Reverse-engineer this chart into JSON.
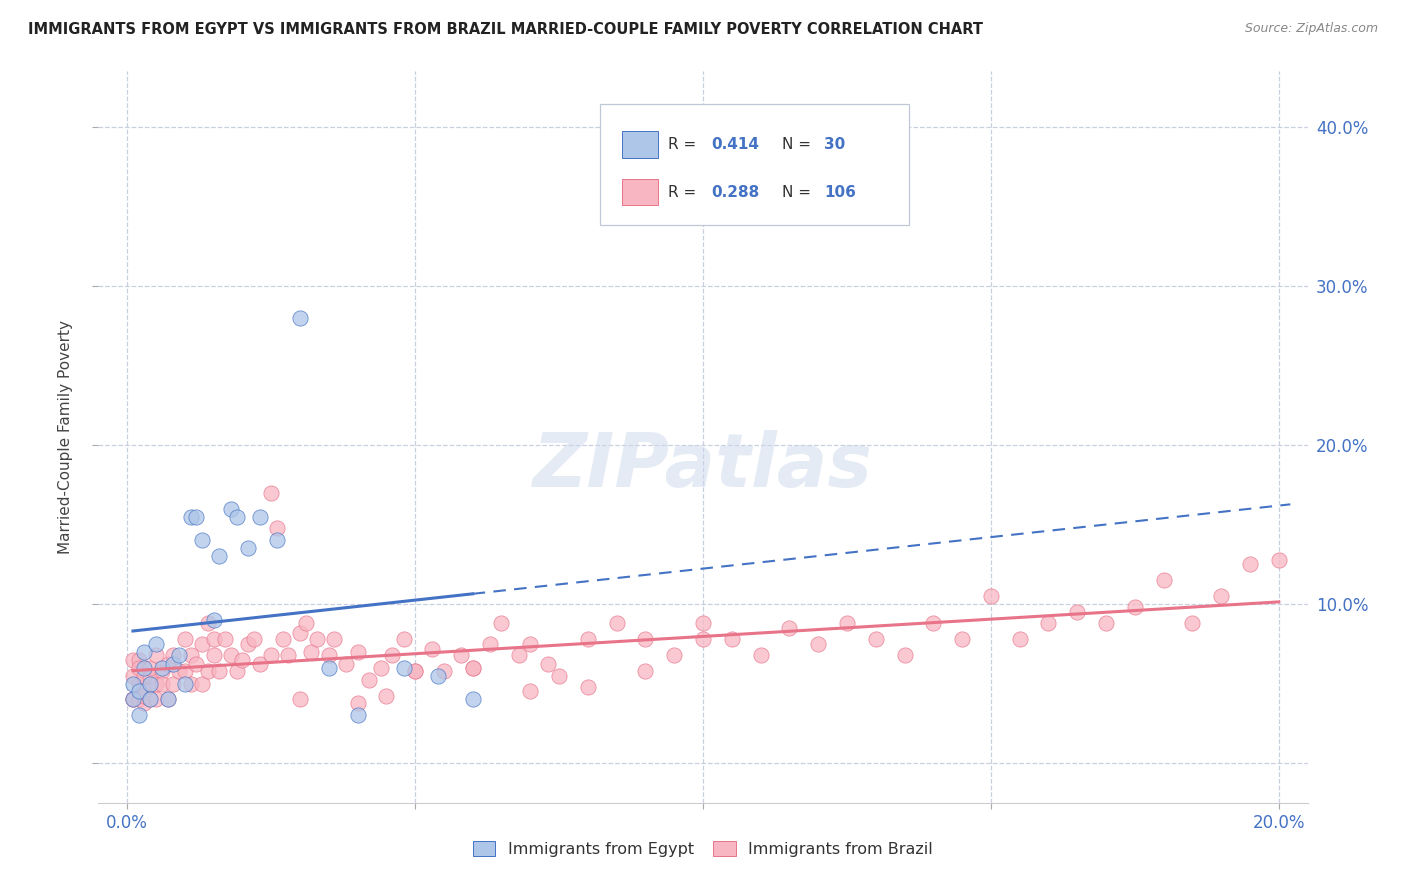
{
  "title": "IMMIGRANTS FROM EGYPT VS IMMIGRANTS FROM BRAZIL MARRIED-COUPLE FAMILY POVERTY CORRELATION CHART",
  "source": "Source: ZipAtlas.com",
  "ylabel": "Married-Couple Family Poverty",
  "x_tick_left": "0.0%",
  "x_tick_right": "20.0%",
  "ylabel_ticks_right": [
    "40.0%",
    "30.0%",
    "20.0%",
    "10.0%"
  ],
  "ylabel_vals": [
    0.0,
    0.1,
    0.2,
    0.3,
    0.4
  ],
  "xlim": [
    -0.005,
    0.205
  ],
  "ylim": [
    -0.025,
    0.435
  ],
  "legend1_label": "Immigrants from Egypt",
  "legend2_label": "Immigrants from Brazil",
  "R_egypt": "0.414",
  "N_egypt": "30",
  "R_brazil": "0.288",
  "N_brazil": "106",
  "color_egypt": "#aec6e8",
  "color_brazil": "#f7b6c2",
  "line_egypt": "#4472c4",
  "line_brazil": "#e8748a",
  "tick_color": "#4472c4",
  "background_color": "#ffffff",
  "grid_color": "#c8d0e0",
  "watermark": "ZIPatlas",
  "egypt_x": [
    0.001,
    0.001,
    0.002,
    0.002,
    0.003,
    0.003,
    0.004,
    0.004,
    0.005,
    0.006,
    0.007,
    0.008,
    0.009,
    0.01,
    0.011,
    0.012,
    0.013,
    0.015,
    0.016,
    0.018,
    0.019,
    0.021,
    0.023,
    0.026,
    0.03,
    0.035,
    0.04,
    0.048,
    0.054,
    0.06
  ],
  "egypt_y": [
    0.04,
    0.05,
    0.045,
    0.03,
    0.06,
    0.07,
    0.05,
    0.04,
    0.075,
    0.06,
    0.04,
    0.062,
    0.068,
    0.05,
    0.155,
    0.155,
    0.14,
    0.09,
    0.13,
    0.16,
    0.155,
    0.135,
    0.155,
    0.14,
    0.28,
    0.06,
    0.03,
    0.06,
    0.055,
    0.04
  ],
  "brazil_x": [
    0.001,
    0.001,
    0.001,
    0.001,
    0.002,
    0.002,
    0.002,
    0.002,
    0.003,
    0.003,
    0.003,
    0.003,
    0.004,
    0.004,
    0.004,
    0.005,
    0.005,
    0.005,
    0.006,
    0.006,
    0.007,
    0.007,
    0.008,
    0.008,
    0.009,
    0.01,
    0.01,
    0.011,
    0.011,
    0.012,
    0.013,
    0.013,
    0.014,
    0.014,
    0.015,
    0.015,
    0.016,
    0.017,
    0.018,
    0.019,
    0.02,
    0.021,
    0.022,
    0.023,
    0.025,
    0.026,
    0.027,
    0.028,
    0.03,
    0.031,
    0.032,
    0.033,
    0.035,
    0.036,
    0.038,
    0.04,
    0.042,
    0.044,
    0.046,
    0.048,
    0.05,
    0.053,
    0.055,
    0.058,
    0.06,
    0.063,
    0.065,
    0.068,
    0.07,
    0.073,
    0.075,
    0.08,
    0.085,
    0.09,
    0.095,
    0.1,
    0.105,
    0.11,
    0.115,
    0.12,
    0.125,
    0.13,
    0.135,
    0.14,
    0.145,
    0.15,
    0.155,
    0.16,
    0.165,
    0.17,
    0.175,
    0.18,
    0.185,
    0.19,
    0.195,
    0.2,
    0.06,
    0.07,
    0.08,
    0.09,
    0.1,
    0.04,
    0.045,
    0.05,
    0.025,
    0.03
  ],
  "brazil_y": [
    0.04,
    0.055,
    0.065,
    0.04,
    0.04,
    0.065,
    0.05,
    0.06,
    0.048,
    0.038,
    0.055,
    0.042,
    0.055,
    0.06,
    0.04,
    0.05,
    0.068,
    0.04,
    0.058,
    0.05,
    0.062,
    0.04,
    0.068,
    0.05,
    0.058,
    0.078,
    0.058,
    0.068,
    0.05,
    0.062,
    0.075,
    0.05,
    0.058,
    0.088,
    0.068,
    0.078,
    0.058,
    0.078,
    0.068,
    0.058,
    0.065,
    0.075,
    0.078,
    0.062,
    0.17,
    0.148,
    0.078,
    0.068,
    0.082,
    0.088,
    0.07,
    0.078,
    0.068,
    0.078,
    0.062,
    0.07,
    0.052,
    0.06,
    0.068,
    0.078,
    0.058,
    0.072,
    0.058,
    0.068,
    0.06,
    0.075,
    0.088,
    0.068,
    0.075,
    0.062,
    0.055,
    0.078,
    0.088,
    0.078,
    0.068,
    0.088,
    0.078,
    0.068,
    0.085,
    0.075,
    0.088,
    0.078,
    0.068,
    0.088,
    0.078,
    0.105,
    0.078,
    0.088,
    0.095,
    0.088,
    0.098,
    0.115,
    0.088,
    0.105,
    0.125,
    0.128,
    0.06,
    0.045,
    0.048,
    0.058,
    0.078,
    0.038,
    0.042,
    0.058,
    0.068,
    0.04
  ]
}
